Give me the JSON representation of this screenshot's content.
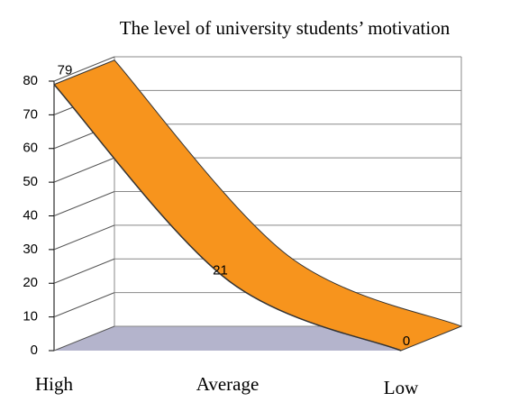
{
  "chart_data": {
    "type": "area3d",
    "title": "The level of university students’ motivation",
    "categories": [
      "High",
      "Average",
      "Low"
    ],
    "values": [
      79,
      21,
      0
    ],
    "color": "#f7941d",
    "ylim": [
      0,
      80
    ],
    "yticks": [
      0,
      10,
      20,
      30,
      40,
      50,
      60,
      70,
      80
    ],
    "grid": true
  }
}
